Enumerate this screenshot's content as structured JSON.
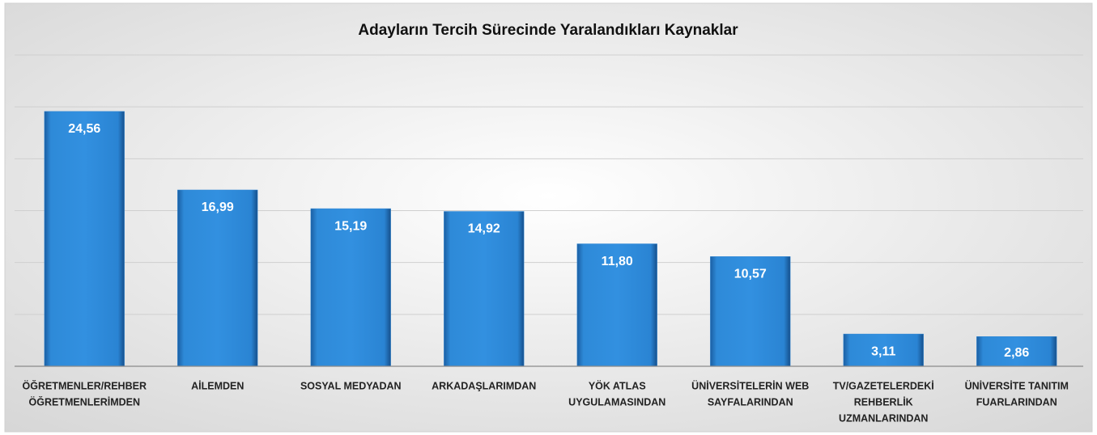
{
  "chart_data": {
    "type": "bar",
    "title": "Adayların Tercih Sürecinde Yaralandıkları Kaynaklar",
    "categories": [
      [
        "ÖĞRETMENLER/REHBER",
        "ÖĞRETMENLERİMDEN"
      ],
      [
        "AİLEMDEN"
      ],
      [
        "SOSYAL MEDYADAN"
      ],
      [
        "ARKADAŞLARIMDAN"
      ],
      [
        "YÖK ATLAS",
        "UYGULAMASINDAN"
      ],
      [
        "ÜNİVERSİTELERİN WEB",
        "SAYFALARINDAN"
      ],
      [
        "TV/GAZETELERDEKİ",
        "REHBERLİK",
        "UZMANLARINDAN"
      ],
      [
        "ÜNİVERSİTE TANITIM",
        "FUARLARINDAN"
      ]
    ],
    "values": [
      24.56,
      16.99,
      15.19,
      14.92,
      11.8,
      10.57,
      3.11,
      2.86
    ],
    "value_labels": [
      "24,56",
      "16,99",
      "15,19",
      "14,92",
      "11,80",
      "10,57",
      "3,11",
      "2,86"
    ],
    "color": "#2b83d2",
    "ylim": [
      0,
      30
    ],
    "yticks": [
      0,
      5,
      10,
      15,
      20,
      25,
      30
    ],
    "grid": true
  }
}
